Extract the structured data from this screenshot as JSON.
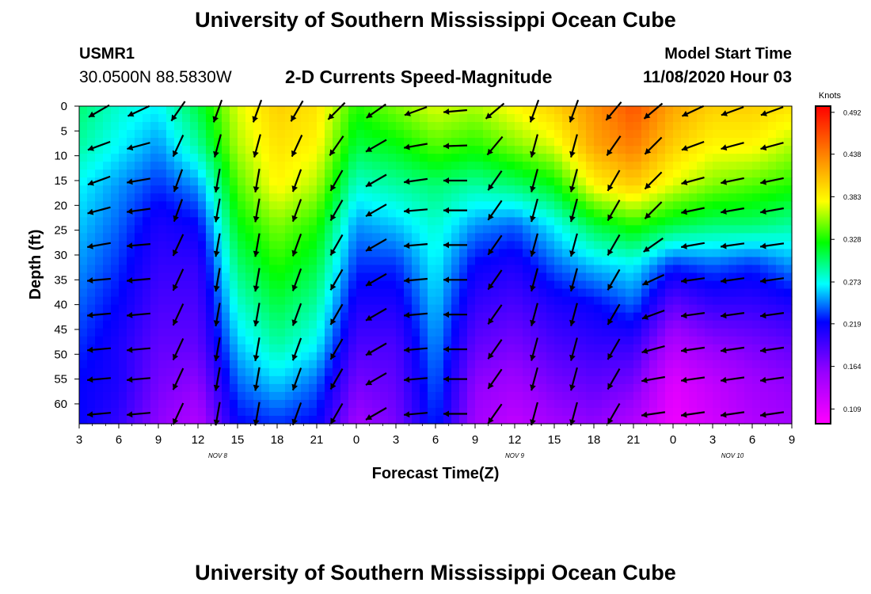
{
  "header": {
    "title": "University of Southern Mississippi Ocean Cube",
    "station_id": "USMR1",
    "coords": "30.0500N 88.5830W",
    "chart_title": "2-D Currents Speed-Magnitude",
    "model_start_label": "Model Start Time",
    "model_start_value": "11/08/2020 Hour 03"
  },
  "footer": {
    "title": "University of Southern Mississippi Ocean Cube"
  },
  "chart_data": {
    "type": "heatmap",
    "title": "2-D Currents Speed-Magnitude",
    "xlabel": "Forecast Time(Z)",
    "ylabel": "Depth (ft)",
    "x_ticks": [
      "3",
      "6",
      "9",
      "12",
      "15",
      "18",
      "21",
      "0",
      "3",
      "6",
      "9",
      "12",
      "15",
      "18",
      "21",
      "0",
      "3",
      "6",
      "9"
    ],
    "x_tick_hours": [
      0,
      3,
      6,
      9,
      12,
      15,
      18,
      21,
      24,
      27,
      30,
      33,
      36,
      39,
      42,
      45,
      48,
      51,
      54
    ],
    "x_range_hours": [
      0,
      54
    ],
    "date_labels": [
      {
        "text": "NOV 8",
        "hour": 10.5
      },
      {
        "text": "NOV 9",
        "hour": 33
      },
      {
        "text": "NOV 10",
        "hour": 49.5
      }
    ],
    "y_ticks": [
      0,
      5,
      10,
      15,
      20,
      25,
      30,
      35,
      40,
      45,
      50,
      55,
      60
    ],
    "y_range_ft": [
      0,
      64
    ],
    "colorbar": {
      "label": "Knots",
      "ticks": [
        "0.492",
        "0.438",
        "0.383",
        "0.328",
        "0.273",
        "0.219",
        "0.164",
        "0.109"
      ],
      "range": [
        0.09,
        0.5
      ]
    },
    "speed_field": {
      "time_hours": [
        0,
        3,
        6,
        9,
        12,
        15,
        18,
        21,
        24,
        27,
        30,
        33,
        36,
        39,
        42,
        45,
        48,
        51,
        54
      ],
      "depth_ft": [
        0,
        8,
        16,
        24,
        32,
        40,
        48,
        56,
        64
      ],
      "values_knots": [
        [
          0.3,
          0.29,
          0.27,
          0.26,
          0.25,
          0.24,
          0.23,
          0.22,
          0.22
        ],
        [
          0.28,
          0.27,
          0.25,
          0.24,
          0.23,
          0.22,
          0.21,
          0.21,
          0.2
        ],
        [
          0.27,
          0.25,
          0.23,
          0.21,
          0.2,
          0.19,
          0.18,
          0.17,
          0.16
        ],
        [
          0.31,
          0.29,
          0.25,
          0.22,
          0.2,
          0.19,
          0.18,
          0.16,
          0.14
        ],
        [
          0.37,
          0.36,
          0.34,
          0.32,
          0.3,
          0.28,
          0.26,
          0.24,
          0.22
        ],
        [
          0.4,
          0.39,
          0.38,
          0.35,
          0.33,
          0.31,
          0.29,
          0.26,
          0.23
        ],
        [
          0.39,
          0.38,
          0.36,
          0.33,
          0.31,
          0.29,
          0.27,
          0.24,
          0.22
        ],
        [
          0.33,
          0.31,
          0.28,
          0.25,
          0.23,
          0.21,
          0.19,
          0.17,
          0.15
        ],
        [
          0.35,
          0.32,
          0.29,
          0.26,
          0.23,
          0.21,
          0.19,
          0.18,
          0.17
        ],
        [
          0.37,
          0.34,
          0.3,
          0.28,
          0.27,
          0.26,
          0.25,
          0.24,
          0.23
        ],
        [
          0.36,
          0.33,
          0.29,
          0.25,
          0.22,
          0.2,
          0.18,
          0.16,
          0.15
        ],
        [
          0.38,
          0.35,
          0.3,
          0.24,
          0.21,
          0.19,
          0.17,
          0.15,
          0.13
        ],
        [
          0.4,
          0.37,
          0.32,
          0.27,
          0.24,
          0.21,
          0.19,
          0.17,
          0.15
        ],
        [
          0.43,
          0.42,
          0.38,
          0.31,
          0.26,
          0.22,
          0.2,
          0.18,
          0.16
        ],
        [
          0.46,
          0.44,
          0.4,
          0.33,
          0.27,
          0.24,
          0.2,
          0.17,
          0.14
        ],
        [
          0.42,
          0.4,
          0.37,
          0.31,
          0.23,
          0.18,
          0.14,
          0.11,
          0.1
        ],
        [
          0.4,
          0.38,
          0.35,
          0.3,
          0.24,
          0.2,
          0.16,
          0.13,
          0.12
        ],
        [
          0.4,
          0.38,
          0.34,
          0.3,
          0.23,
          0.2,
          0.17,
          0.15,
          0.14
        ],
        [
          0.39,
          0.36,
          0.33,
          0.29,
          0.25,
          0.21,
          0.18,
          0.16,
          0.15
        ]
      ]
    },
    "vectors": {
      "time_hours": [
        1.5,
        4.5,
        7.5,
        10.5,
        13.5,
        16.5,
        19.5,
        22.5,
        25.5,
        28.5,
        31.5,
        34.5,
        37.5,
        40.5,
        43.5,
        46.5,
        49.5,
        52.5
      ],
      "depth_ft": [
        1,
        8,
        15,
        21,
        28,
        35,
        42,
        49,
        55,
        62
      ],
      "direction_deg": [
        [
          240,
          250,
          250,
          255,
          260,
          265,
          265,
          265,
          265,
          265
        ],
        [
          245,
          255,
          260,
          262,
          265,
          265,
          265,
          265,
          265,
          265
        ],
        [
          215,
          205,
          200,
          200,
          205,
          205,
          205,
          205,
          205,
          205
        ],
        [
          200,
          195,
          190,
          190,
          190,
          190,
          190,
          190,
          190,
          190
        ],
        [
          200,
          195,
          190,
          190,
          190,
          190,
          190,
          190,
          190,
          190
        ],
        [
          210,
          205,
          200,
          200,
          200,
          200,
          200,
          200,
          200,
          200
        ],
        [
          225,
          215,
          210,
          210,
          210,
          210,
          210,
          210,
          210,
          210
        ],
        [
          235,
          240,
          240,
          240,
          240,
          240,
          240,
          240,
          240,
          240
        ],
        [
          250,
          260,
          262,
          265,
          265,
          265,
          265,
          265,
          265,
          265
        ],
        [
          265,
          268,
          270,
          270,
          270,
          270,
          270,
          270,
          270,
          270
        ],
        [
          230,
          220,
          215,
          215,
          215,
          215,
          215,
          215,
          215,
          215
        ],
        [
          200,
          195,
          195,
          195,
          195,
          195,
          195,
          195,
          195,
          195
        ],
        [
          200,
          195,
          195,
          195,
          195,
          195,
          195,
          195,
          195,
          195
        ],
        [
          220,
          215,
          210,
          210,
          210,
          210,
          210,
          210,
          210,
          210
        ],
        [
          230,
          225,
          225,
          225,
          235,
          245,
          250,
          255,
          260,
          262
        ],
        [
          245,
          250,
          255,
          258,
          260,
          262,
          262,
          262,
          262,
          262
        ],
        [
          250,
          255,
          258,
          260,
          262,
          262,
          262,
          262,
          262,
          262
        ],
        [
          250,
          255,
          258,
          260,
          262,
          262,
          262,
          262,
          262,
          262
        ]
      ]
    }
  }
}
